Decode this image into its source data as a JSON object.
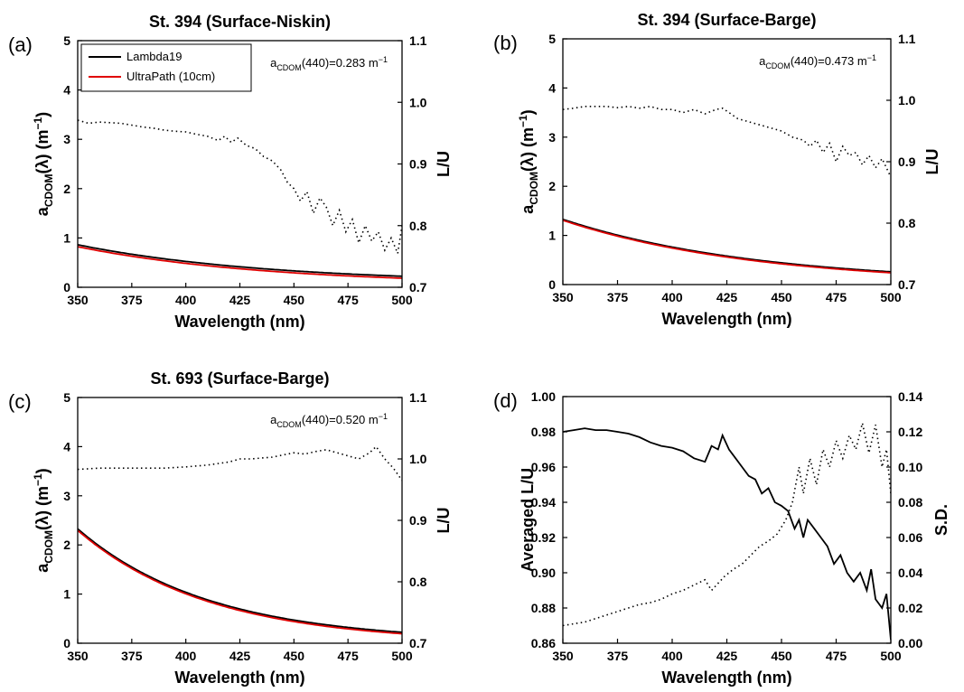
{
  "chart_data": [
    {
      "type": "line",
      "panel_label": "(a)",
      "title": "St. 394 (Surface-Niskin)",
      "xlabel": "Wavelength (nm)",
      "ylabel": {
        "main": "a",
        "sub": "CDOM",
        "rest": "(λ) (m",
        "sup": "−1",
        "close": ")"
      },
      "ylabel_right": "L/U",
      "xlim": [
        350,
        500
      ],
      "ylim": [
        0,
        5
      ],
      "ylim_right": [
        0.7,
        1.1
      ],
      "xticks": [
        "350",
        "375",
        "400",
        "425",
        "450",
        "475",
        "500"
      ],
      "yticks": [
        "0",
        "1",
        "2",
        "3",
        "4",
        "5"
      ],
      "yticks_right": [
        "0.7",
        "0.8",
        "0.9",
        "1.0",
        "1.1"
      ],
      "annotation": {
        "main": "a",
        "sub": "CDOM",
        "rest": "(440)=0.283 m",
        "sup": "−1"
      },
      "legend": {
        "position": "top-left",
        "entries": [
          "Lambda19",
          "UltraPath (10cm)"
        ]
      },
      "series": [
        {
          "name": "Lambda19",
          "axis": "left",
          "style": "solid",
          "color": "#000000",
          "model": {
            "a440": 0.283,
            "S": 0.0113,
            "offset": 0.08
          }
        },
        {
          "name": "UltraPath (10cm)",
          "axis": "left",
          "style": "solid",
          "color": "#e00000",
          "model": {
            "a440": 0.283,
            "S": 0.0113,
            "offset": 0.04
          }
        },
        {
          "axis": "right",
          "style": "dotted",
          "color": "#000000",
          "x": [
            350,
            355,
            360,
            365,
            370,
            375,
            380,
            385,
            390,
            395,
            400,
            405,
            410,
            415,
            418,
            421,
            424,
            428,
            432,
            436,
            440,
            444,
            447,
            450,
            453,
            456,
            459,
            462,
            465,
            468,
            471,
            474,
            477,
            480,
            483,
            486,
            489,
            492,
            495,
            498,
            500
          ],
          "y": [
            0.971,
            0.966,
            0.968,
            0.967,
            0.966,
            0.963,
            0.96,
            0.958,
            0.955,
            0.953,
            0.952,
            0.948,
            0.945,
            0.938,
            0.945,
            0.935,
            0.942,
            0.93,
            0.925,
            0.912,
            0.905,
            0.89,
            0.87,
            0.86,
            0.84,
            0.855,
            0.82,
            0.845,
            0.83,
            0.8,
            0.825,
            0.79,
            0.81,
            0.772,
            0.8,
            0.775,
            0.79,
            0.76,
            0.78,
            0.755,
            0.8
          ]
        }
      ]
    },
    {
      "type": "line",
      "panel_label": "(b)",
      "title": "St. 394 (Surface-Barge)",
      "xlabel": "Wavelength (nm)",
      "ylabel": {
        "main": "a",
        "sub": "CDOM",
        "rest": "(λ) (m",
        "sup": "−1",
        "close": ")"
      },
      "ylabel_right": "L/U",
      "xlim": [
        350,
        500
      ],
      "ylim": [
        0,
        5
      ],
      "ylim_right": [
        0.7,
        1.1
      ],
      "xticks": [
        "350",
        "375",
        "400",
        "425",
        "450",
        "475",
        "500"
      ],
      "yticks": [
        "0",
        "1",
        "2",
        "3",
        "4",
        "5"
      ],
      "yticks_right": [
        "0.7",
        "0.8",
        "0.9",
        "1.0",
        "1.1"
      ],
      "annotation": {
        "main": "a",
        "sub": "CDOM",
        "rest": "(440)=0.473 m",
        "sup": "−1"
      },
      "series": [
        {
          "name": "Lambda19",
          "axis": "left",
          "style": "solid",
          "color": "#000000",
          "model": {
            "a440": 0.473,
            "S": 0.0113,
            "offset": 0.02
          }
        },
        {
          "name": "UltraPath (10cm)",
          "axis": "left",
          "style": "solid",
          "color": "#e00000",
          "model": {
            "a440": 0.473,
            "S": 0.0113,
            "offset": 0.0
          }
        },
        {
          "axis": "right",
          "style": "dotted",
          "color": "#000000",
          "x": [
            350,
            355,
            360,
            365,
            370,
            375,
            380,
            385,
            390,
            395,
            400,
            405,
            410,
            415,
            420,
            423,
            426,
            430,
            435,
            440,
            445,
            450,
            455,
            460,
            463,
            466,
            469,
            472,
            475,
            478,
            481,
            484,
            487,
            490,
            493,
            496,
            500
          ],
          "y": [
            0.985,
            0.987,
            0.99,
            0.99,
            0.99,
            0.988,
            0.99,
            0.987,
            0.99,
            0.985,
            0.985,
            0.98,
            0.985,
            0.978,
            0.985,
            0.987,
            0.98,
            0.97,
            0.965,
            0.96,
            0.955,
            0.95,
            0.94,
            0.935,
            0.925,
            0.935,
            0.915,
            0.93,
            0.9,
            0.925,
            0.91,
            0.915,
            0.895,
            0.91,
            0.89,
            0.905,
            0.875
          ]
        }
      ]
    },
    {
      "type": "line",
      "panel_label": "(c)",
      "title": "St. 693 (Surface-Barge)",
      "xlabel": "Wavelength (nm)",
      "ylabel": {
        "main": "a",
        "sub": "CDOM",
        "rest": "(λ) (m",
        "sup": "−1",
        "close": ")"
      },
      "ylabel_right": "L/U",
      "xlim": [
        350,
        500
      ],
      "ylim": [
        0,
        5
      ],
      "ylim_right": [
        0.7,
        1.1
      ],
      "xticks": [
        "350",
        "375",
        "400",
        "425",
        "450",
        "475",
        "500"
      ],
      "yticks": [
        "0",
        "1",
        "2",
        "3",
        "4",
        "5"
      ],
      "yticks_right": [
        "0.7",
        "0.8",
        "0.9",
        "1.0",
        "1.1"
      ],
      "annotation": {
        "main": "a",
        "sub": "CDOM",
        "rest": "(440)=0.520 m",
        "sup": "−1"
      },
      "series": [
        {
          "name": "Lambda19",
          "axis": "left",
          "style": "solid",
          "color": "#000000",
          "model": {
            "a440": 0.52,
            "S": 0.0165,
            "offset": 0.03
          }
        },
        {
          "name": "UltraPath (10cm)",
          "axis": "left",
          "style": "solid",
          "color": "#e00000",
          "model": {
            "a440": 0.52,
            "S": 0.0165,
            "offset": 0.0
          }
        },
        {
          "axis": "right",
          "style": "dotted",
          "color": "#000000",
          "x": [
            350,
            360,
            370,
            380,
            390,
            400,
            410,
            420,
            425,
            430,
            440,
            450,
            455,
            460,
            465,
            470,
            475,
            480,
            485,
            488,
            492,
            496,
            500
          ],
          "y": [
            0.983,
            0.985,
            0.985,
            0.985,
            0.985,
            0.987,
            0.99,
            0.995,
            1.0,
            1.0,
            1.003,
            1.01,
            1.008,
            1.012,
            1.015,
            1.01,
            1.005,
            1.0,
            1.01,
            1.02,
            1.0,
            0.985,
            0.965
          ]
        }
      ]
    },
    {
      "type": "line",
      "panel_label": "(d)",
      "xlabel": "Wavelength (nm)",
      "ylabel": "Averaged L/U",
      "ylabel_right": "S.D.",
      "xlim": [
        350,
        500
      ],
      "ylim": [
        0.86,
        1.0
      ],
      "ylim_right": [
        0.0,
        0.14
      ],
      "xticks": [
        "350",
        "375",
        "400",
        "425",
        "450",
        "475",
        "500"
      ],
      "yticks": [
        "0.86",
        "0.88",
        "0.90",
        "0.92",
        "0.94",
        "0.96",
        "0.98",
        "1.00"
      ],
      "yticks_right": [
        "0.00",
        "0.02",
        "0.04",
        "0.06",
        "0.08",
        "0.10",
        "0.12",
        "0.14"
      ],
      "series": [
        {
          "axis": "left",
          "style": "solid",
          "color": "#000000",
          "x": [
            350,
            355,
            360,
            365,
            370,
            375,
            380,
            385,
            390,
            395,
            400,
            405,
            410,
            415,
            418,
            421,
            423,
            426,
            429,
            432,
            435,
            438,
            441,
            444,
            447,
            450,
            453,
            456,
            458,
            460,
            462,
            465,
            468,
            471,
            474,
            477,
            480,
            483,
            486,
            489,
            491,
            493,
            496,
            498,
            500
          ],
          "y": [
            0.98,
            0.981,
            0.982,
            0.981,
            0.981,
            0.98,
            0.979,
            0.977,
            0.974,
            0.972,
            0.971,
            0.969,
            0.965,
            0.963,
            0.972,
            0.97,
            0.978,
            0.97,
            0.965,
            0.96,
            0.955,
            0.953,
            0.945,
            0.948,
            0.94,
            0.938,
            0.935,
            0.925,
            0.93,
            0.92,
            0.93,
            0.925,
            0.92,
            0.915,
            0.905,
            0.91,
            0.9,
            0.895,
            0.9,
            0.89,
            0.902,
            0.885,
            0.88,
            0.888,
            0.862
          ]
        },
        {
          "axis": "right",
          "style": "dotted",
          "color": "#000000",
          "x": [
            350,
            355,
            360,
            365,
            370,
            375,
            380,
            385,
            390,
            395,
            400,
            405,
            410,
            415,
            418,
            421,
            424,
            428,
            432,
            436,
            440,
            444,
            448,
            452,
            455,
            458,
            460,
            463,
            466,
            469,
            472,
            475,
            478,
            481,
            484,
            487,
            490,
            493,
            496,
            498,
            500
          ],
          "y": [
            0.01,
            0.011,
            0.012,
            0.014,
            0.016,
            0.018,
            0.02,
            0.022,
            0.023,
            0.025,
            0.028,
            0.03,
            0.033,
            0.036,
            0.03,
            0.034,
            0.038,
            0.042,
            0.045,
            0.05,
            0.055,
            0.058,
            0.062,
            0.07,
            0.08,
            0.1,
            0.085,
            0.105,
            0.09,
            0.11,
            0.1,
            0.115,
            0.105,
            0.118,
            0.11,
            0.125,
            0.108,
            0.124,
            0.1,
            0.11,
            0.085
          ]
        }
      ]
    }
  ]
}
